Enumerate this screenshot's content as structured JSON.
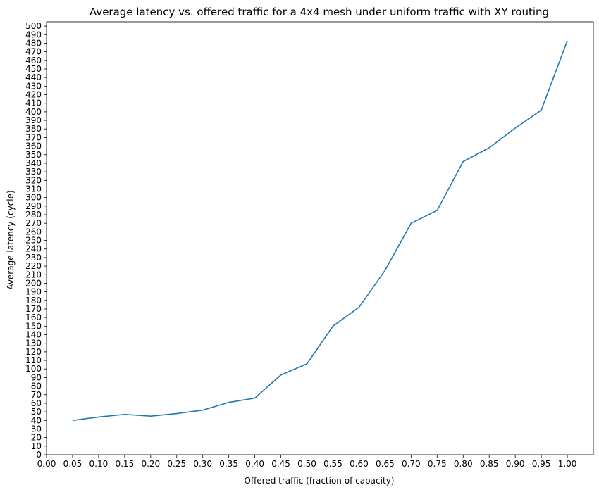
{
  "chart_data": {
    "type": "line",
    "title": "Average latency vs. offered traffic for a 4x4 mesh under uniform traffic with XY routing",
    "xlabel": "Offered traffic (fraction of capacity)",
    "ylabel": "Average latency (cycle)",
    "xlim": [
      0.0,
      1.05
    ],
    "ylim": [
      0,
      505
    ],
    "x_ticks": [
      "0.00",
      "0.05",
      "0.10",
      "0.15",
      "0.20",
      "0.25",
      "0.30",
      "0.35",
      "0.40",
      "0.45",
      "0.50",
      "0.55",
      "0.60",
      "0.65",
      "0.70",
      "0.75",
      "0.80",
      "0.85",
      "0.90",
      "0.95",
      "1.00"
    ],
    "y_tick_step": 10,
    "y_tick_max": 500,
    "grid": false,
    "legend": "none",
    "series": [
      {
        "color": "#1f77b4",
        "x": [
          0.05,
          0.1,
          0.15,
          0.2,
          0.25,
          0.3,
          0.35,
          0.4,
          0.45,
          0.5,
          0.55,
          0.6,
          0.65,
          0.7,
          0.75,
          0.8,
          0.85,
          0.9,
          0.95,
          1.0
        ],
        "values": [
          40,
          44,
          47,
          45,
          48,
          52,
          61,
          66,
          93,
          106,
          150,
          172,
          215,
          270,
          285,
          342,
          358,
          381,
          402,
          483
        ]
      }
    ]
  }
}
